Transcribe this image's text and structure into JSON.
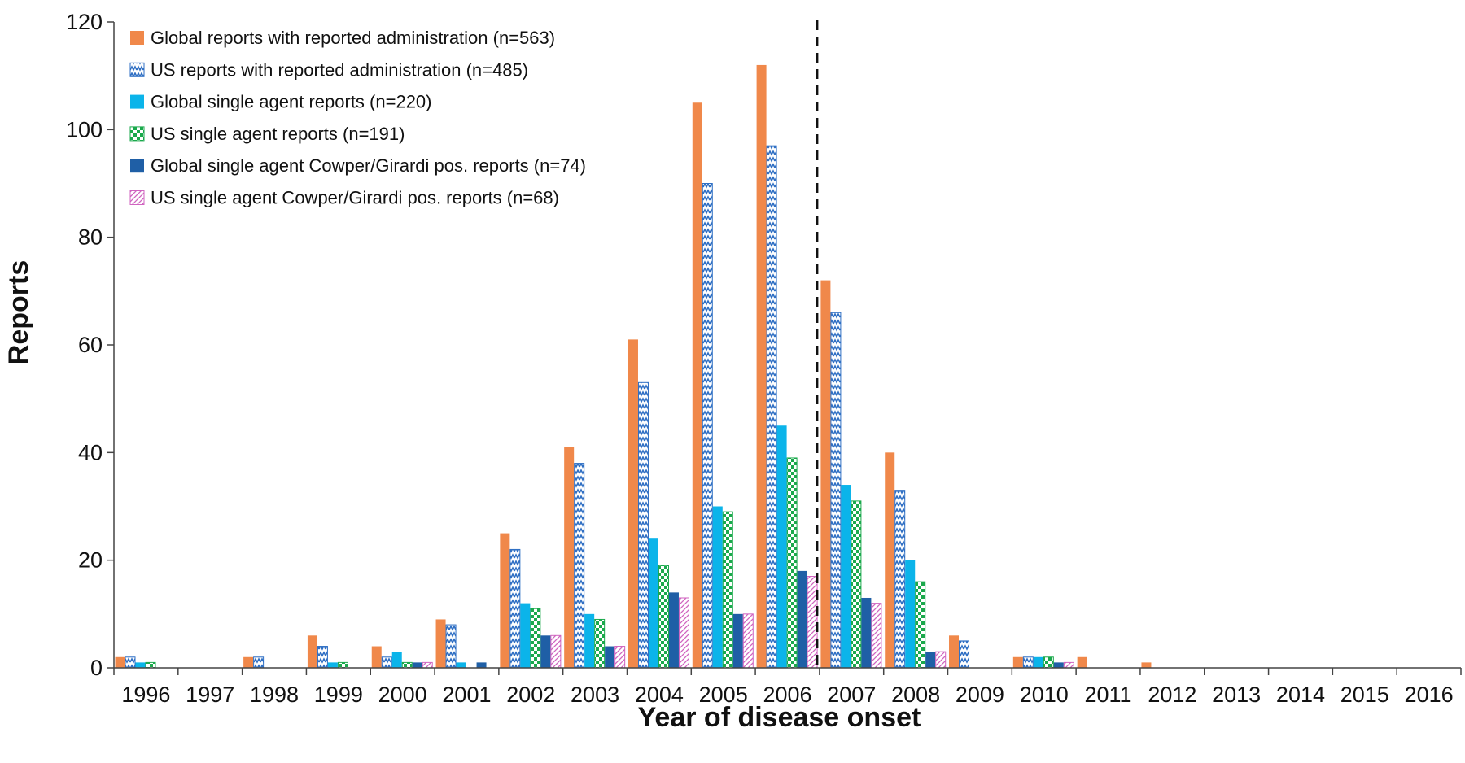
{
  "chart_data": {
    "type": "bar",
    "title": "",
    "xlabel": "Year of disease onset",
    "ylabel": "Reports",
    "ylim": [
      0,
      120
    ],
    "yticks": [
      0,
      20,
      40,
      60,
      80,
      100,
      120
    ],
    "grid": false,
    "legend_position": "top-left",
    "categories": [
      "1996",
      "1997",
      "1998",
      "1999",
      "2000",
      "2001",
      "2002",
      "2003",
      "2004",
      "2005",
      "2006",
      "2007",
      "2008",
      "2009",
      "2010",
      "2011",
      "2012",
      "2013",
      "2014",
      "2015",
      "2016"
    ],
    "reference_line": {
      "x_between": [
        "2006",
        "2007"
      ],
      "style": "dashed"
    },
    "series": [
      {
        "name": "Global reports with reported administration (n=563)",
        "color": "#F0884A",
        "pattern": "solid",
        "values": [
          2,
          0,
          2,
          6,
          4,
          9,
          25,
          41,
          61,
          105,
          112,
          72,
          40,
          6,
          2,
          2,
          1,
          0,
          0,
          0,
          0
        ]
      },
      {
        "name": "US reports with reported administration (n=485)",
        "color": "#2F6FC4",
        "pattern": "zigzag",
        "values": [
          2,
          0,
          2,
          4,
          2,
          8,
          22,
          38,
          53,
          90,
          97,
          66,
          33,
          5,
          2,
          0,
          0,
          0,
          0,
          0,
          0
        ]
      },
      {
        "name": "Global single agent reports (n=220)",
        "color": "#0BB4EA",
        "pattern": "solid",
        "values": [
          1,
          0,
          0,
          1,
          3,
          1,
          12,
          10,
          24,
          30,
          45,
          34,
          20,
          0,
          2,
          0,
          0,
          0,
          0,
          0,
          0
        ]
      },
      {
        "name": "US single agent reports (n=191)",
        "color": "#1BA94C",
        "pattern": "checker",
        "values": [
          1,
          0,
          0,
          1,
          1,
          0,
          11,
          9,
          19,
          29,
          39,
          31,
          16,
          0,
          2,
          0,
          0,
          0,
          0,
          0,
          0
        ]
      },
      {
        "name": "Global single agent Cowper/Girardi pos. reports (n=74)",
        "color": "#1F5FA6",
        "pattern": "solid",
        "values": [
          0,
          0,
          0,
          0,
          1,
          1,
          6,
          4,
          14,
          10,
          18,
          13,
          3,
          0,
          1,
          0,
          0,
          0,
          0,
          0,
          0
        ]
      },
      {
        "name": "US single agent Cowper/Girardi pos. reports (n=68)",
        "color": "#D064C0",
        "pattern": "diagonal",
        "values": [
          0,
          0,
          0,
          0,
          1,
          0,
          6,
          4,
          13,
          10,
          17,
          12,
          3,
          0,
          1,
          0,
          0,
          0,
          0,
          0,
          0
        ]
      }
    ]
  }
}
